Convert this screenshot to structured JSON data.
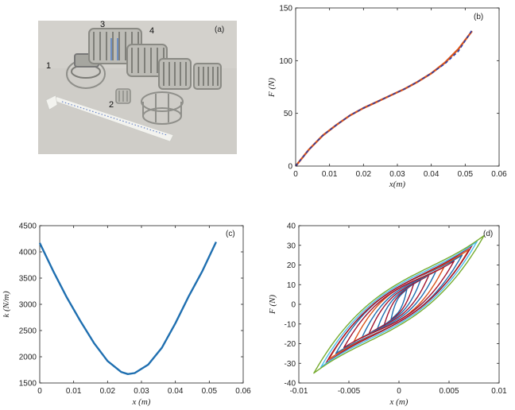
{
  "panel_labels": {
    "a": "(a)",
    "b": "(b)",
    "c": "(c)",
    "d": "(d)"
  },
  "photo": {
    "numbers": [
      "1",
      "2",
      "3",
      "4"
    ],
    "colors": {
      "background": "#cfcdc8",
      "metal": "#8f8f8a",
      "ruler": "#f3f3ef"
    }
  },
  "chart_data": [
    {
      "id": "b",
      "type": "line",
      "xlabel": "x(m)",
      "ylabel": "F (N)",
      "xlim": [
        0,
        0.06
      ],
      "ylim": [
        0,
        150
      ],
      "xticks": [
        "0",
        "0.01",
        "0.02",
        "0.03",
        "0.04",
        "0.05",
        "0.06"
      ],
      "xtick_values": [
        0,
        0.01,
        0.02,
        0.03,
        0.04,
        0.05,
        0.06
      ],
      "yticks": [
        "0",
        "50",
        "100",
        "150"
      ],
      "ytick_values": [
        0,
        50,
        100,
        150
      ],
      "grid": false,
      "series": [
        {
          "color": "#d95319",
          "style": "solid",
          "x": [
            0,
            0.004,
            0.008,
            0.012,
            0.016,
            0.02,
            0.024,
            0.028,
            0.032,
            0.036,
            0.04,
            0.044,
            0.048,
            0.052
          ],
          "y": [
            0,
            16,
            29,
            39,
            48,
            55,
            61,
            67,
            73,
            80,
            88,
            98,
            111,
            128
          ]
        },
        {
          "color": "#2c3ea8",
          "style": "dashed",
          "x": [
            0,
            0.004,
            0.008,
            0.012,
            0.016,
            0.02,
            0.024,
            0.028,
            0.032,
            0.036,
            0.04,
            0.044,
            0.048,
            0.052
          ],
          "y": [
            0,
            16,
            29,
            39,
            48,
            55,
            61,
            67,
            73,
            80,
            88,
            97,
            109,
            129
          ]
        }
      ]
    },
    {
      "id": "c",
      "type": "line",
      "xlabel": "x (m)",
      "ylabel": "k (N/m)",
      "xlim": [
        0,
        0.06
      ],
      "ylim": [
        1500,
        4500
      ],
      "xticks": [
        "0",
        "0.01",
        "0.02",
        "0.03",
        "0.04",
        "0.05",
        "0.06"
      ],
      "xtick_values": [
        0,
        0.01,
        0.02,
        0.03,
        0.04,
        0.05,
        0.06
      ],
      "yticks": [
        "1500",
        "2000",
        "2500",
        "3000",
        "3500",
        "4000",
        "4500"
      ],
      "ytick_values": [
        1500,
        2000,
        2500,
        3000,
        3500,
        4000,
        4500
      ],
      "grid": false,
      "series": [
        {
          "color": "#1f6fb0",
          "style": "solid",
          "x": [
            0,
            0.004,
            0.008,
            0.012,
            0.016,
            0.02,
            0.024,
            0.026,
            0.028,
            0.032,
            0.036,
            0.04,
            0.044,
            0.048,
            0.052
          ],
          "y": [
            4170,
            3630,
            3130,
            2680,
            2260,
            1920,
            1710,
            1670,
            1690,
            1850,
            2170,
            2640,
            3160,
            3640,
            4190
          ]
        }
      ]
    },
    {
      "id": "d",
      "type": "line",
      "xlabel": "x (m)",
      "ylabel": "F (N)",
      "xlim": [
        -0.01,
        0.01
      ],
      "ylim": [
        -40,
        40
      ],
      "xticks": [
        "-0.01",
        "-0.005",
        "0",
        "0.005",
        "0.01"
      ],
      "xtick_values": [
        -0.01,
        -0.005,
        0,
        0.005,
        0.01
      ],
      "yticks": [
        "-40",
        "-30",
        "-20",
        "-10",
        "0",
        "10",
        "20",
        "30",
        "40"
      ],
      "ytick_values": [
        -40,
        -30,
        -20,
        -10,
        0,
        10,
        20,
        30,
        40
      ],
      "grid": false,
      "loops": [
        {
          "color": "#1f6fb0",
          "amplitude": 0.0008,
          "force": 8,
          "width": 4
        },
        {
          "color": "#a2142f",
          "amplitude": 0.0015,
          "force": 11,
          "width": 5
        },
        {
          "color": "#1f6fb0",
          "amplitude": 0.0022,
          "force": 13,
          "width": 6
        },
        {
          "color": "#a2142f",
          "amplitude": 0.003,
          "force": 15,
          "width": 7
        },
        {
          "color": "#1f6fb0",
          "amplitude": 0.0037,
          "force": 17,
          "width": 8
        },
        {
          "color": "#d95319",
          "amplitude": 0.0045,
          "force": 19,
          "width": 9
        },
        {
          "color": "#a2142f",
          "amplitude": 0.0055,
          "force": 22,
          "width": 9
        },
        {
          "color": "#1f6fb0",
          "amplitude": 0.0063,
          "force": 25,
          "width": 10
        },
        {
          "color": "#d95319",
          "amplitude": 0.007,
          "force": 28,
          "width": 10
        },
        {
          "color": "#a2142f",
          "amplitude": 0.0073,
          "force": 30,
          "width": 10
        },
        {
          "color": "#4dbeee",
          "amplitude": 0.0078,
          "force": 32,
          "width": 11
        },
        {
          "color": "#77ac30",
          "amplitude": 0.0085,
          "force": 35,
          "width": 12
        }
      ]
    }
  ]
}
